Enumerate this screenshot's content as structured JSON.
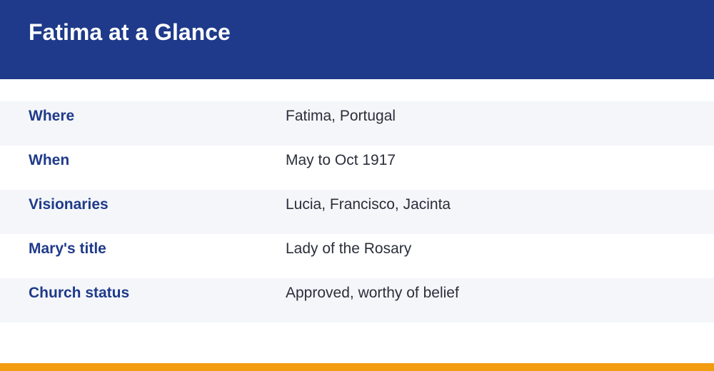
{
  "header": {
    "title": "Fatima at a Glance"
  },
  "table": {
    "rows": [
      [
        "Where",
        "Fatima, Portugal"
      ],
      [
        "When",
        "May to Oct 1917"
      ],
      [
        "Visionaries",
        "Lucia, Francisco, Jacinta"
      ],
      [
        "Mary's title",
        "Lady of the Rosary"
      ],
      [
        "Church status",
        "Approved, worthy of belief"
      ]
    ]
  }
}
